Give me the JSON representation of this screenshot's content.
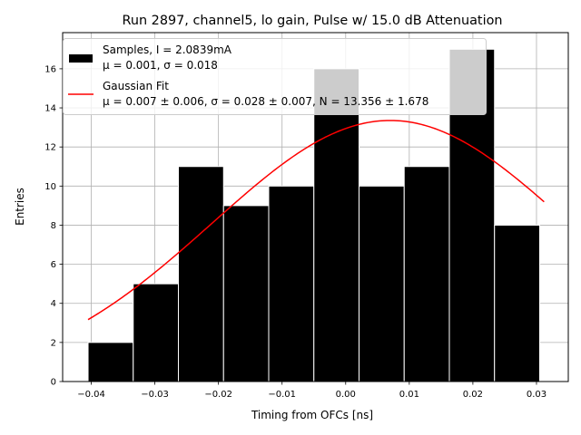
{
  "chart_data": {
    "type": "bar",
    "title": "Run 2897, channel5, lo gain, Pulse w/ 15.0 dB Attenuation",
    "xlabel": "Timing from OFCs [ns]",
    "ylabel": "Entries",
    "xlim": [
      -0.0445,
      0.035
    ],
    "ylim": [
      0,
      17.85
    ],
    "xticks": [
      -0.04,
      -0.03,
      -0.02,
      -0.01,
      0.0,
      0.01,
      0.02,
      0.03
    ],
    "xtick_labels": [
      "−0.04",
      "−0.03",
      "−0.02",
      "−0.01",
      "0.00",
      "0.01",
      "0.02",
      "0.03"
    ],
    "yticks": [
      0,
      2,
      4,
      6,
      8,
      10,
      12,
      14,
      16
    ],
    "yticklabels": [
      "0",
      "2",
      "4",
      "6",
      "8",
      "10",
      "12",
      "14",
      "16"
    ],
    "grid": true,
    "legend_position": "top-left",
    "histogram": {
      "name": "Samples",
      "bin_edges": [
        -0.0405,
        -0.0334,
        -0.0263,
        -0.0192,
        -0.0121,
        -0.005,
        0.0021,
        0.0092,
        0.0163,
        0.0234,
        0.0305
      ],
      "counts": [
        2,
        5,
        11,
        9,
        10,
        16,
        10,
        11,
        17,
        8
      ],
      "color": "#000000",
      "edge_color": "#ffffff"
    },
    "gaussian_fit": {
      "name": "Gaussian Fit",
      "mu": 0.007,
      "sigma": 0.028,
      "N": 13.356,
      "x_range": [
        -0.0405,
        0.0312
      ],
      "color": "#ff0000"
    },
    "legend": [
      {
        "label_line1": "Samples, I = 2.0839mA",
        "label_line2": "μ = 0.001, σ = 0.018"
      },
      {
        "label_line1": "Gaussian Fit",
        "label_line2": "μ = 0.007 ± 0.006, σ = 0.028 ± 0.007, N = 13.356 ± 1.678"
      }
    ]
  }
}
